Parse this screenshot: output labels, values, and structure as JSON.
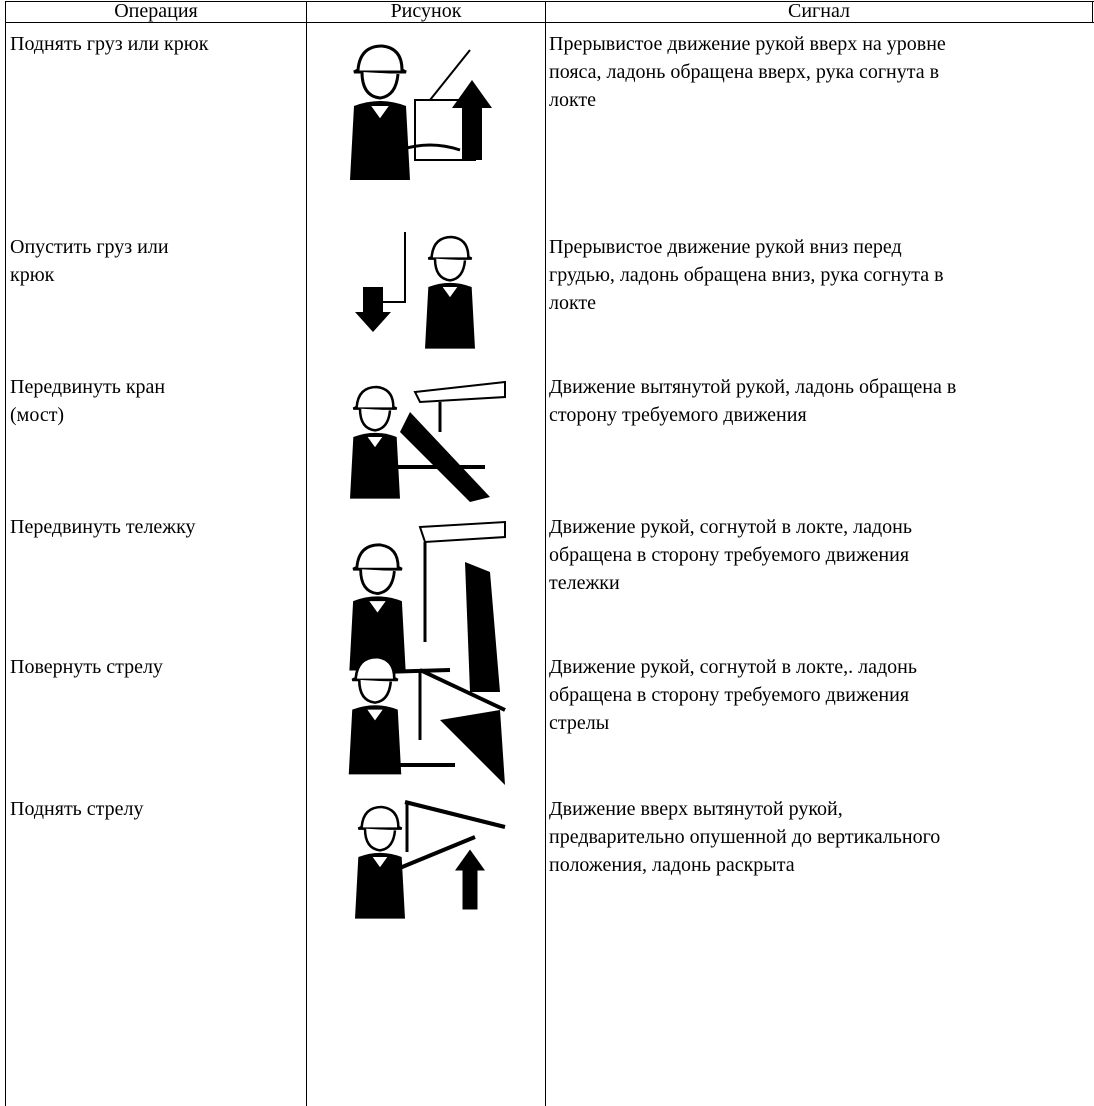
{
  "table": {
    "header": [
      "Операция",
      "Рисунок",
      "Сигнал"
    ],
    "rows": [
      {
        "operation": [
          "Поднять груз или крюк"
        ],
        "signal": [
          "Прерывистое движение рукой вверх на уровне",
          "пояса, ладонь обращена вверх, рука согнута в",
          "локте"
        ]
      },
      {
        "operation": [
          "Опустить груз или",
          "крюк"
        ],
        "signal": [
          "Прерывистое движение рукой вниз перед",
          "грудью, ладонь обращена вниз, рука согнута в",
          "локте"
        ]
      },
      {
        "operation": [
          "Передвинуть кран",
          "(мост)"
        ],
        "signal": [
          "Движение вытянутой рукой, ладонь обращена в",
          "сторону требуемого движения"
        ]
      },
      {
        "operation": [
          "Передвинуть тележку"
        ],
        "signal": [
          "Движение рукой, согнутой в локте, ладонь",
          "обращена в сторону требуемого движения",
          "тележки"
        ]
      },
      {
        "operation": [
          "Повернуть стрелу"
        ],
        "signal": [
          "Движение рукой, согнутой в локте,. ладонь",
          "обращена в сторону требуемого движения",
          "стрелы"
        ]
      },
      {
        "operation": [
          "Поднять стрелу"
        ],
        "signal": [
          "Движение вверх вытянутой рукой,",
          "предварительно опушенной до вертикального",
          "положения, ладонь раскрыта"
        ]
      }
    ]
  }
}
